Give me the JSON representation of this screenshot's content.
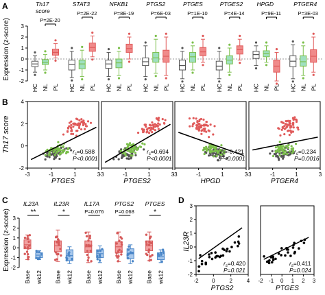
{
  "colors": {
    "HC": "#555555",
    "NL": "#7bbf4a",
    "PL": "#e05a5a",
    "Base": "#d65a5a",
    "wk12": "#4a86c8",
    "line": "#000000"
  },
  "panel_letters": [
    "A",
    "B",
    "C",
    "D"
  ],
  "panel_A": {
    "ylabel": "Expression (z-score)",
    "groups": [
      "HC",
      "NL",
      "PL"
    ],
    "ylim": [
      -2,
      3
    ],
    "yticks": [
      "-2",
      "-1",
      "0",
      "1",
      "2",
      "3"
    ],
    "genes": [
      {
        "name": "Th17",
        "name2": "score",
        "p": "P=2E-20",
        "pair": [
          1,
          2
        ],
        "stats": [
          {
            "q1": -0.7,
            "med": -0.45,
            "q3": -0.2,
            "lo": -1.2,
            "hi": 0.3
          },
          {
            "q1": -0.5,
            "med": -0.3,
            "q3": -0.05,
            "lo": -1.0,
            "hi": 0.4
          },
          {
            "q1": 0.35,
            "med": 0.6,
            "q3": 0.9,
            "lo": 0.1,
            "hi": 1.4
          }
        ]
      },
      {
        "name": "STAT3",
        "name2": "",
        "p": "P=2E-22",
        "pair": [
          1,
          2
        ],
        "stats": [
          {
            "q1": -1.0,
            "med": -0.5,
            "q3": -0.1,
            "lo": -1.7,
            "hi": 0.7
          },
          {
            "q1": -0.9,
            "med": -0.45,
            "q3": -0.1,
            "lo": -1.6,
            "hi": 0.8
          },
          {
            "q1": 0.7,
            "med": 1.05,
            "q3": 1.45,
            "lo": 0.2,
            "hi": 2.1
          }
        ]
      },
      {
        "name": "NFKB1",
        "name2": "",
        "p": "P=8E-19",
        "pair": [
          1,
          2
        ],
        "stats": [
          {
            "q1": -0.85,
            "med": -0.45,
            "q3": -0.1,
            "lo": -1.6,
            "hi": 0.6
          },
          {
            "q1": -0.8,
            "med": -0.35,
            "q3": 0.0,
            "lo": -1.5,
            "hi": 0.7
          },
          {
            "q1": 0.6,
            "med": 0.95,
            "q3": 1.35,
            "lo": 0.0,
            "hi": 2.0
          }
        ]
      },
      {
        "name": "PTGS2",
        "name2": "",
        "p": "P=6E-03",
        "pair": [
          1,
          2
        ],
        "stats": [
          {
            "q1": -0.6,
            "med": -0.25,
            "q3": 0.1,
            "lo": -1.6,
            "hi": 1.2
          },
          {
            "q1": -0.3,
            "med": 0.1,
            "q3": 0.6,
            "lo": -1.3,
            "hi": 1.8
          },
          {
            "q1": -0.3,
            "med": 0.25,
            "q3": 0.8,
            "lo": -1.5,
            "hi": 2.0
          }
        ]
      },
      {
        "name": "PTGES",
        "name2": "",
        "p": "P=1E-10",
        "pair": [
          1,
          2
        ],
        "stats": [
          {
            "q1": -1.0,
            "med": -0.6,
            "q3": -0.1,
            "lo": -1.8,
            "hi": 0.7
          },
          {
            "q1": -0.3,
            "med": 0.2,
            "q3": 0.6,
            "lo": -1.0,
            "hi": 1.2
          },
          {
            "q1": 0.3,
            "med": 0.65,
            "q3": 1.05,
            "lo": -0.3,
            "hi": 1.8
          }
        ]
      },
      {
        "name": "PTGES2",
        "name2": "",
        "p": "P=4E-14",
        "pair": [
          1,
          2
        ],
        "stats": [
          {
            "q1": -1.0,
            "med": -0.65,
            "q3": -0.2,
            "lo": -1.8,
            "hi": 0.7
          },
          {
            "q1": -0.45,
            "med": -0.1,
            "q3": 0.3,
            "lo": -1.2,
            "hi": 1.0
          },
          {
            "q1": 0.45,
            "med": 0.85,
            "q3": 1.2,
            "lo": -0.1,
            "hi": 1.8
          }
        ]
      },
      {
        "name": "HPGD",
        "name2": "",
        "p": "P=9E-11",
        "pair": [
          1,
          2
        ],
        "stats": [
          {
            "q1": 0.05,
            "med": 0.4,
            "q3": 0.7,
            "lo": -0.6,
            "hi": 1.2
          },
          {
            "q1": 0.2,
            "med": 0.5,
            "q3": 0.75,
            "lo": -0.3,
            "hi": 1.2
          },
          {
            "q1": -1.2,
            "med": -0.65,
            "q3": -0.1,
            "lo": -2.0,
            "hi": 0.6
          }
        ]
      },
      {
        "name": "PTGER4",
        "name2": "",
        "p": "P=3E-03",
        "pair": [
          1,
          2
        ],
        "stats": [
          {
            "q1": -0.7,
            "med": -0.2,
            "q3": 0.3,
            "lo": -1.8,
            "hi": 1.3
          },
          {
            "q1": -0.65,
            "med": -0.25,
            "q3": 0.3,
            "lo": -1.5,
            "hi": 1.2
          },
          {
            "q1": -0.3,
            "med": 0.25,
            "q3": 0.85,
            "lo": -1.2,
            "hi": 2.0
          }
        ]
      }
    ]
  },
  "panel_B": {
    "ylabel": "Th17 score",
    "ylim": [
      -2,
      4
    ],
    "yticks": [
      "-2",
      "0",
      "2",
      "4"
    ],
    "xlim": [
      -3,
      3
    ],
    "xticks": [
      "-3",
      "-1",
      "1",
      "3"
    ],
    "plots": [
      {
        "xlabel": "PTGES",
        "rs_label": "r",
        "rs_sub": "s",
        "rs_value": "=0.588",
        "p": "P<0.0001",
        "slope": 0.588
      },
      {
        "xlabel": "PTGES2",
        "rs_label": "r",
        "rs_sub": "s",
        "rs_value": "=0.694",
        "p": "P<0.0001",
        "slope": 0.694
      },
      {
        "xlabel": "HPGD",
        "rs_label": "r",
        "rs_sub": "s",
        "rs_value": "=-0.421",
        "p": "P<0.0001",
        "slope": -0.421
      },
      {
        "xlabel": "PTGER4",
        "rs_label": "r",
        "rs_sub": "s",
        "rs_value": "=0.234",
        "p": "P=0.0016",
        "slope": 0.234
      }
    ]
  },
  "panel_C": {
    "ylabel": "Expression (z-score)",
    "ylim": [
      -2,
      3
    ],
    "yticks": [
      "-2",
      "-1",
      "0",
      "1",
      "2",
      "3"
    ],
    "groups": [
      "Base",
      "wk12"
    ],
    "genes": [
      {
        "name": "IL23A",
        "sig": "**",
        "stats": [
          {
            "q1": -0.1,
            "med": 0.3,
            "q3": 0.8,
            "lo": -1.2,
            "hi": 1.3
          },
          {
            "q1": -1.0,
            "med": -0.75,
            "q3": -0.5,
            "lo": -1.2,
            "hi": -0.3
          }
        ]
      },
      {
        "name": "IL23R",
        "sig": "*",
        "stats": [
          {
            "q1": -0.4,
            "med": 0.2,
            "q3": 0.7,
            "lo": -1.4,
            "hi": 1.8
          },
          {
            "q1": -1.3,
            "med": -0.8,
            "q3": -0.2,
            "lo": -1.6,
            "hi": 0.1
          }
        ]
      },
      {
        "name": "IL17A",
        "sig": "P=0.076",
        "stats": [
          {
            "q1": -0.5,
            "med": 0.1,
            "q3": 0.7,
            "lo": -1.5,
            "hi": 1.6
          },
          {
            "q1": -1.0,
            "med": -0.6,
            "q3": -0.2,
            "lo": -1.5,
            "hi": 0.2
          }
        ]
      },
      {
        "name": "PTGS2",
        "sig": "P=0.068",
        "stats": [
          {
            "q1": -0.5,
            "med": 0.1,
            "q3": 0.6,
            "lo": -1.4,
            "hi": 1.6
          },
          {
            "q1": -1.1,
            "med": -0.6,
            "q3": -0.1,
            "lo": -1.6,
            "hi": 0.3
          }
        ]
      },
      {
        "name": "PTGES",
        "sig": "*",
        "stats": [
          {
            "q1": -0.3,
            "med": 0.2,
            "q3": 0.7,
            "lo": -1.3,
            "hi": 1.6
          },
          {
            "q1": -1.2,
            "med": -0.9,
            "q3": -0.5,
            "lo": -1.5,
            "hi": -0.2
          }
        ]
      }
    ]
  },
  "panel_D": {
    "ylabel": "IL23R",
    "ylim": [
      -2,
      3
    ],
    "yticks": [
      "-2",
      "-1",
      "0",
      "1",
      "2",
      "3"
    ],
    "plots": [
      {
        "xlabel": "PTGS2",
        "xlim": [
          -2,
          4
        ],
        "xticks": [
          "-2",
          "0",
          "2",
          "4"
        ],
        "rs_label": "r",
        "rs_sub": "s",
        "rs_value": "=0.420",
        "p": "P=0.021",
        "line": [
          [
            -1.7,
            -0.85
          ],
          [
            3.3,
            1.4
          ]
        ]
      },
      {
        "xlabel": "PTGES",
        "xlim": [
          -2,
          3
        ],
        "xticks": [
          "-2",
          "-1",
          "0",
          "1",
          "2",
          "3"
        ],
        "rs_label": "r",
        "rs_sub": "s",
        "rs_value": "=0.411",
        "p": "P=0.024",
        "line": [
          [
            -1.7,
            -0.9
          ],
          [
            2.5,
            0.7
          ]
        ]
      }
    ]
  }
}
